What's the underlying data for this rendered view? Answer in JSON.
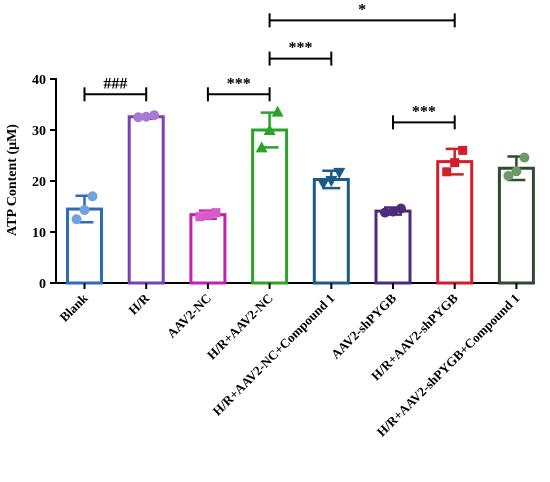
{
  "chart_data": {
    "type": "bar",
    "title": "",
    "xlabel": "",
    "ylabel": "ATP Content (μM)",
    "ylim": [
      0,
      40
    ],
    "yticks": [
      "0",
      "10",
      "20",
      "30",
      "40"
    ],
    "grid": false,
    "legend": "none",
    "categories": [
      "Blank",
      "H/R",
      "AAV2-NC",
      "H/R+AAV2-NC",
      "H/R+AAV2-NC+Compound 1",
      "AAV2-shPYGB",
      "H/R+AAV2-shPYGB",
      "H/R+AAV2-shPYGB+Compound 1"
    ],
    "values": [
      14.5,
      32.6,
      13.4,
      30.0,
      20.3,
      14.1,
      23.8,
      22.5
    ],
    "error": [
      2.6,
      0.4,
      0.8,
      3.4,
      1.7,
      0.7,
      2.5,
      2.3
    ],
    "points": [
      [
        12.5,
        14.3,
        17.0
      ],
      [
        32.5,
        32.6,
        32.9
      ],
      [
        13.0,
        13.3,
        13.8
      ],
      [
        26.6,
        30.0,
        33.6
      ],
      [
        19.4,
        20.0,
        21.6
      ],
      [
        13.8,
        14.0,
        14.6
      ],
      [
        21.8,
        23.6,
        26.0
      ],
      [
        21.0,
        21.9,
        24.6
      ]
    ],
    "colors": [
      "#2e6db4",
      "#7b3fb0",
      "#c41fb0",
      "#29a329",
      "#1a5c85",
      "#4b2b7a",
      "#d41c2a",
      "#2f4a30"
    ],
    "point_colors": [
      "#6fa3e0",
      "#a77ad6",
      "#d65cc8",
      "#29a329",
      "#1a5c85",
      "#4b2b7a",
      "#d41c2a",
      "#6a9a68"
    ],
    "markers": [
      "circle",
      "circle",
      "square",
      "triangle-up",
      "triangle-down",
      "circle",
      "square",
      "circle"
    ],
    "annotations": [
      {
        "text": "###",
        "from": 0,
        "to": 1,
        "level": 37
      },
      {
        "text": "***",
        "from": 2,
        "to": 3,
        "level": 37
      },
      {
        "text": "***",
        "from": 3,
        "to": 4,
        "level": 44
      },
      {
        "text": "*",
        "from": 3,
        "to": 6,
        "level": 51.5
      },
      {
        "text": "***",
        "from": 5,
        "to": 6,
        "level": 31.5
      }
    ]
  }
}
